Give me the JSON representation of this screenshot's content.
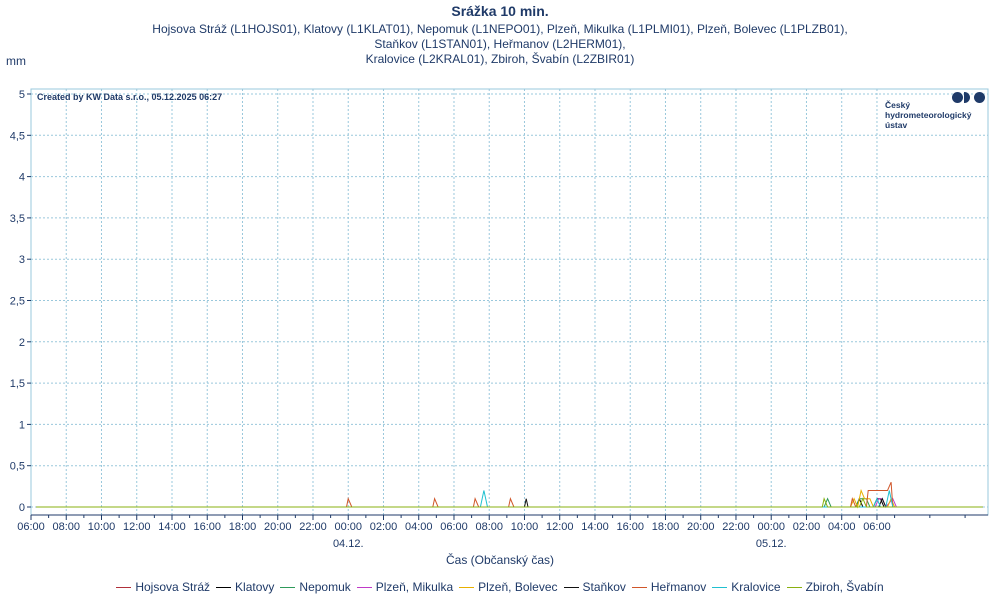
{
  "chart_data": {
    "type": "line",
    "title": "Srážka 10 min.",
    "subtitle_line1": "Hojsova Stráž (L1HOJS01), Klatovy (L1KLAT01), Nepomuk (L1NEPO01), Plzeň, Mikulka (L1PLMI01), Plzeň, Bolevec (L1PLZB01), Staňkov (L1STAN01), Heřmanov (L2HERM01),",
    "subtitle_line2": "Kralovice (L2KRAL01), Zbiroh, Švabín (L2ZBIR01)",
    "ylabel": "mm",
    "xlabel": "Čas (Občanský čas)",
    "credit": "Created by KW Data s.r.o., 05.12.2025 06:27",
    "logo_lines": [
      "Český",
      "hydrometeorologický",
      "ústav"
    ],
    "ylim": [
      0,
      5
    ],
    "y_ticks": [
      "0",
      "0,5",
      "1",
      "1,5",
      "2",
      "2,5",
      "3",
      "3,5",
      "4",
      "4,5",
      "5"
    ],
    "x_range_hours": [
      6,
      60.3
    ],
    "x_ticks": [
      "06:00",
      "08:00",
      "10:00",
      "12:00",
      "14:00",
      "16:00",
      "18:00",
      "20:00",
      "22:00",
      "00:00",
      "02:00",
      "04:00",
      "06:00",
      "08:00",
      "10:00",
      "12:00",
      "14:00",
      "16:00",
      "18:00",
      "20:00",
      "22:00",
      "00:00",
      "02:00",
      "04:00",
      "06:00"
    ],
    "date_labels": [
      {
        "label": "04.12.",
        "hour": 24
      },
      {
        "label": "05.12.",
        "hour": 48
      }
    ],
    "grid": true,
    "legend_position": "bottom",
    "series": [
      {
        "name": "Hojsova Stráž",
        "color": "#b0303a",
        "points": [
          [
            6.3,
            0
          ],
          [
            60,
            0
          ]
        ]
      },
      {
        "name": "Klatovy",
        "color": "#000000",
        "points": [
          [
            6.3,
            0
          ],
          [
            52.8,
            0
          ],
          [
            53,
            0.1
          ],
          [
            53.2,
            0
          ],
          [
            53.8,
            0
          ],
          [
            54,
            0.1
          ],
          [
            54.2,
            0.1
          ],
          [
            54.4,
            0
          ],
          [
            60,
            0
          ]
        ]
      },
      {
        "name": "Nepomuk",
        "color": "#2e9a5a",
        "points": [
          [
            6.3,
            0
          ],
          [
            51.0,
            0
          ],
          [
            51.2,
            0.1
          ],
          [
            51.4,
            0
          ],
          [
            52.8,
            0
          ],
          [
            53.0,
            0.1
          ],
          [
            53.4,
            0.1
          ],
          [
            53.6,
            0
          ],
          [
            60,
            0
          ]
        ]
      },
      {
        "name": "Plzeň, Mikulka",
        "color": "#c03ac8",
        "points": [
          [
            6.3,
            0
          ],
          [
            53.9,
            0
          ],
          [
            54.1,
            0.1
          ],
          [
            54.3,
            0.1
          ],
          [
            54.5,
            0
          ],
          [
            54.9,
            0.1
          ],
          [
            55.1,
            0
          ],
          [
            60,
            0
          ]
        ]
      },
      {
        "name": "Plzeň, Bolevec",
        "color": "#e8b000",
        "points": [
          [
            6.3,
            0
          ],
          [
            52.5,
            0
          ],
          [
            52.7,
            0.1
          ],
          [
            52.9,
            0
          ],
          [
            53.1,
            0.2
          ],
          [
            53.3,
            0.1
          ],
          [
            53.6,
            0.1
          ],
          [
            53.8,
            0
          ],
          [
            54.6,
            0
          ],
          [
            54.8,
            0.1
          ],
          [
            55.0,
            0
          ],
          [
            60,
            0
          ]
        ]
      },
      {
        "name": "Staňkov",
        "color": "#111111",
        "points": [
          [
            6.3,
            0
          ],
          [
            34.0,
            0
          ],
          [
            34.1,
            0.1
          ],
          [
            34.2,
            0
          ],
          [
            54.1,
            0
          ],
          [
            54.3,
            0.1
          ],
          [
            54.5,
            0
          ],
          [
            60,
            0
          ]
        ]
      },
      {
        "name": "Heřmanov",
        "color": "#d0562a",
        "points": [
          [
            6.3,
            0
          ],
          [
            23.9,
            0
          ],
          [
            24.0,
            0.1
          ],
          [
            24.2,
            0
          ],
          [
            28.8,
            0
          ],
          [
            28.9,
            0.1
          ],
          [
            29.1,
            0
          ],
          [
            31.1,
            0
          ],
          [
            31.2,
            0.1
          ],
          [
            31.4,
            0
          ],
          [
            33.1,
            0
          ],
          [
            33.2,
            0.1
          ],
          [
            33.4,
            0
          ],
          [
            52.5,
            0
          ],
          [
            52.6,
            0.1
          ],
          [
            52.8,
            0
          ],
          [
            53.4,
            0
          ],
          [
            53.5,
            0.2
          ],
          [
            54.6,
            0.2
          ],
          [
            54.8,
            0.3
          ],
          [
            54.9,
            0
          ],
          [
            60,
            0
          ]
        ]
      },
      {
        "name": "Kralovice",
        "color": "#20c0d0",
        "points": [
          [
            6.3,
            0
          ],
          [
            31.5,
            0
          ],
          [
            31.7,
            0.2
          ],
          [
            31.9,
            0
          ],
          [
            53.8,
            0
          ],
          [
            54.0,
            0.1
          ],
          [
            54.2,
            0
          ],
          [
            54.5,
            0
          ],
          [
            54.7,
            0.2
          ],
          [
            54.9,
            0
          ],
          [
            60,
            0
          ]
        ]
      },
      {
        "name": "Zbiroh, Švabín",
        "color": "#8ab010",
        "points": [
          [
            6.3,
            0
          ],
          [
            50.9,
            0
          ],
          [
            51.0,
            0.1
          ],
          [
            51.2,
            0
          ],
          [
            53.0,
            0
          ],
          [
            53.2,
            0.1
          ],
          [
            53.4,
            0
          ],
          [
            60,
            0
          ]
        ]
      }
    ]
  }
}
